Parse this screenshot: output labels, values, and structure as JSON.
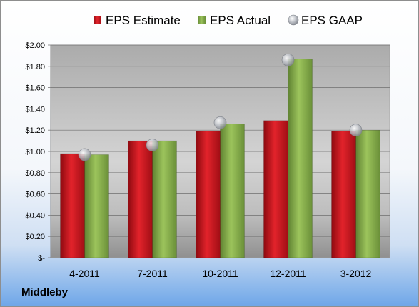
{
  "chart_data": {
    "type": "bar",
    "title": "",
    "xlabel": "",
    "ylabel": "",
    "categories": [
      "4-2011",
      "7-2011",
      "10-2011",
      "12-2011",
      "3-2012"
    ],
    "series": [
      {
        "name": "EPS Estimate",
        "type": "bar",
        "color": "#c8141c",
        "values": [
          0.98,
          1.1,
          1.19,
          1.29,
          1.19
        ]
      },
      {
        "name": "EPS Actual",
        "type": "bar",
        "color": "#86b04a",
        "values": [
          0.97,
          1.1,
          1.26,
          1.87,
          1.2
        ]
      },
      {
        "name": "EPS GAAP",
        "type": "marker",
        "color": "#b8bcc4",
        "values": [
          0.97,
          1.06,
          1.27,
          1.86,
          1.2
        ]
      }
    ],
    "ylim": [
      0,
      2.0
    ],
    "yticks": [
      0,
      0.2,
      0.4,
      0.6,
      0.8,
      1.0,
      1.2,
      1.4,
      1.6,
      1.8,
      2.0
    ],
    "ytick_labels": [
      "$-",
      "$0.20",
      "$0.40",
      "$0.60",
      "$0.80",
      "$1.00",
      "$1.20",
      "$1.40",
      "$1.60",
      "$1.80",
      "$2.00"
    ],
    "grid": true,
    "legend_position": "top"
  },
  "footer": {
    "company": "Middleby"
  }
}
